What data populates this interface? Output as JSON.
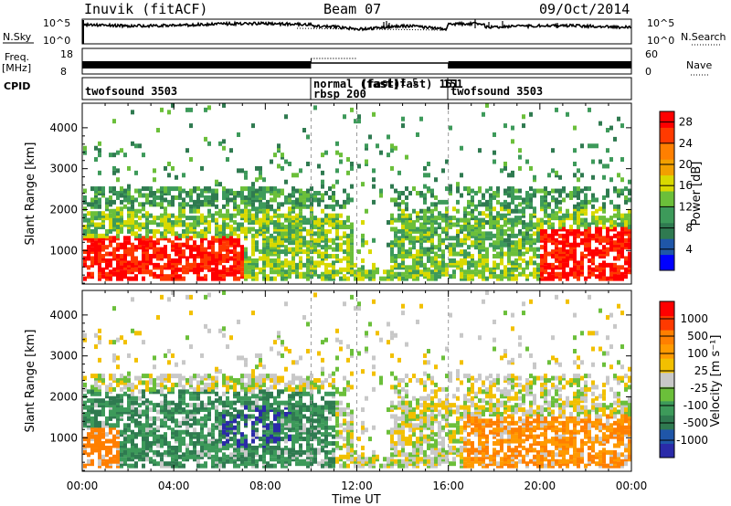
{
  "header": {
    "station": "Inuvik (fitACF)",
    "beam": "Beam 07",
    "date": "09/Oct/2014"
  },
  "side_labels": {
    "nsky": "N.Sky",
    "freq": "Freq.",
    "freq_unit": "[MHz]",
    "cpid": "CPID",
    "nsearch": "N.Search",
    "nave": "Nave"
  },
  "noise_panel": {
    "left_ticks": [
      "10^5",
      "10^0"
    ],
    "right_ticks": [
      "10^5",
      "10^0"
    ]
  },
  "freq_panel": {
    "left_ticks": [
      "18",
      "8"
    ],
    "right_ticks": [
      "60",
      "0"
    ]
  },
  "cpid_panel": {
    "segments": [
      {
        "start_hour": 0,
        "label": "twofsound 3503"
      },
      {
        "start_hour": 10,
        "label": "normal (fast)",
        "label2": "rbsp 200"
      },
      {
        "start_hour": 12,
        "label": "(fast)"
      },
      {
        "start_hour": 13,
        "label": "(fast) 151"
      },
      {
        "start_hour": 16,
        "label": "twofsound 3503"
      }
    ],
    "overlap_text": "al 1 5",
    "extra_text": "151"
  },
  "x_axis": {
    "label": "Time UT",
    "ticks": [
      "00:00",
      "04:00",
      "08:00",
      "12:00",
      "16:00",
      "20:00",
      "00:00"
    ],
    "tick_hours": [
      0,
      4,
      8,
      12,
      16,
      20,
      24
    ],
    "dashed_hours": [
      10,
      12,
      16
    ]
  },
  "chart_data": [
    {
      "type": "heatmap",
      "quantity": "Power",
      "ylabel": "Slant Range [km]",
      "y_ticks": [
        1000,
        2000,
        3000,
        4000
      ],
      "ylim": [
        180,
        4600
      ],
      "xlim_hours": [
        0,
        24
      ],
      "colorbar": {
        "label": "Power [dB]",
        "ticks": [
          "28",
          "24",
          "20",
          "16",
          "12",
          "8",
          "4"
        ],
        "tick_values": [
          28,
          24,
          20,
          16,
          12,
          8,
          4
        ],
        "range": [
          0,
          30
        ],
        "colors": [
          "#0000ff",
          "#1f56a8",
          "#2f7a50",
          "#3d9a5a",
          "#6bbf3a",
          "#d9d900",
          "#f2a000",
          "#ff7f00",
          "#ff3a00",
          "#ff0000"
        ]
      }
    },
    {
      "type": "heatmap",
      "quantity": "Velocity",
      "ylabel": "Slant Range [km]",
      "y_ticks": [
        1000,
        2000,
        3000,
        4000
      ],
      "ylim": [
        180,
        4600
      ],
      "xlim_hours": [
        0,
        24
      ],
      "colorbar": {
        "label": "Velocity [m s⁻¹]",
        "ticks": [
          "1000",
          "500",
          "100",
          "25",
          "-25",
          "-100",
          "-500",
          "-1000"
        ],
        "colors": [
          "#2a2aa8",
          "#1f56a8",
          "#2f7a50",
          "#3d9a5a",
          "#6bbf3a",
          "#c8c8c8",
          "#f2c000",
          "#ff9a00",
          "#ff7f00",
          "#ff3a00",
          "#ff0000"
        ]
      }
    }
  ]
}
